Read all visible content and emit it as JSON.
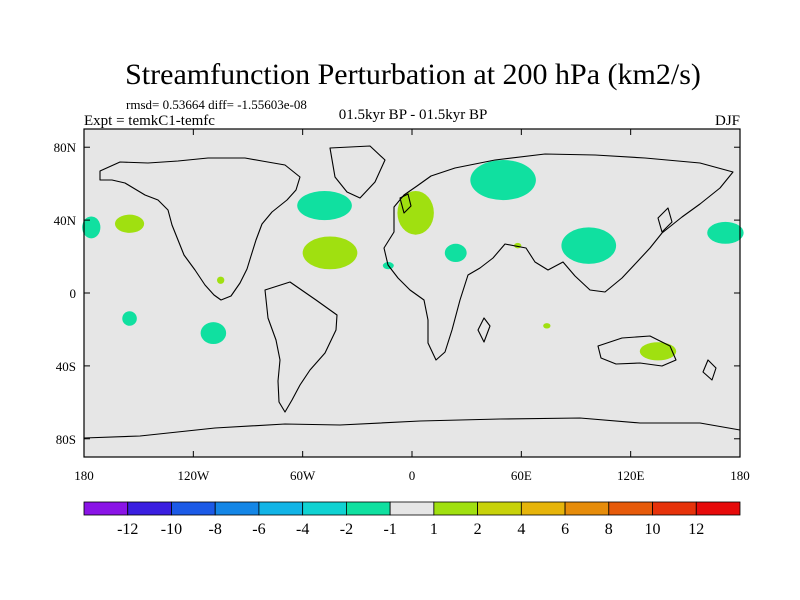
{
  "chart_data": {
    "type": "heatmap",
    "projection": "cylindrical-equidistant",
    "title": "Streamfunction Perturbation at 200 hPa (km2/s)",
    "stats_line": "rmsd= 0.53664 diff= -1.55603e-08",
    "experiment_line": "Expt = temkC1-temfc",
    "period_line": "01.5kyr BP - 01.5kyr BP",
    "season": "DJF",
    "xlim": [
      -180,
      180
    ],
    "ylim": [
      -90,
      90
    ],
    "x_ticks": [
      {
        "value": -180,
        "label": "180"
      },
      {
        "value": -120,
        "label": "120W"
      },
      {
        "value": -60,
        "label": "60W"
      },
      {
        "value": 0,
        "label": "0"
      },
      {
        "value": 60,
        "label": "60E"
      },
      {
        "value": 120,
        "label": "120E"
      },
      {
        "value": 180,
        "label": "180"
      }
    ],
    "y_ticks": [
      {
        "value": 80,
        "label": "80N"
      },
      {
        "value": 40,
        "label": "40N"
      },
      {
        "value": 0,
        "label": "0"
      },
      {
        "value": -40,
        "label": "40S"
      },
      {
        "value": -80,
        "label": "80S"
      }
    ],
    "colorbar": {
      "levels": [
        "-12",
        "-10",
        "-8",
        "-6",
        "-4",
        "-2",
        "-1",
        "1",
        "2",
        "4",
        "6",
        "8",
        "10",
        "12"
      ],
      "colors": [
        "#8a14e6",
        "#3a1ee0",
        "#1c5ae6",
        "#1486e6",
        "#12b4e6",
        "#10d2d2",
        "#10e0a0",
        "#e6e6e6",
        "#a0e010",
        "#c8d20a",
        "#e6b40a",
        "#e68c0a",
        "#e65a0a",
        "#e6320a",
        "#e60a0a"
      ]
    },
    "background_color": "#e6e6e6",
    "regions": [
      {
        "label": "N Pacific near 155W 38N",
        "lon": -155,
        "lat": 38,
        "rx_deg": 8,
        "ry_deg": 5,
        "bin": "1 to 2"
      },
      {
        "label": "Dateline 38N",
        "lon": -176,
        "lat": 36,
        "rx_deg": 5,
        "ry_deg": 6,
        "bin": "-2 to -1"
      },
      {
        "label": "NW Atlantic 45N",
        "lon": -48,
        "lat": 48,
        "rx_deg": 15,
        "ry_deg": 8,
        "bin": "-2 to -1"
      },
      {
        "label": "Subtropical Atlantic 25N",
        "lon": -45,
        "lat": 22,
        "rx_deg": 15,
        "ry_deg": 9,
        "bin": "1 to 2"
      },
      {
        "label": "Caribbean 15N",
        "lon": -13,
        "lat": 15,
        "rx_deg": 3,
        "ry_deg": 2,
        "bin": "-2 to -1"
      },
      {
        "label": "Europe 45N",
        "lon": 2,
        "lat": 44,
        "rx_deg": 10,
        "ry_deg": 12,
        "bin": "1 to 2"
      },
      {
        "label": "Siberia 60N",
        "lon": 50,
        "lat": 62,
        "rx_deg": 18,
        "ry_deg": 11,
        "bin": "-2 to -1"
      },
      {
        "label": "N Africa 22N",
        "lon": 24,
        "lat": 22,
        "rx_deg": 6,
        "ry_deg": 5,
        "bin": "-2 to -1"
      },
      {
        "label": "Persian Gulf 25N",
        "lon": 58,
        "lat": 26,
        "rx_deg": 2,
        "ry_deg": 1.5,
        "bin": "1 to 2"
      },
      {
        "label": "Tibet 25N",
        "lon": 97,
        "lat": 26,
        "rx_deg": 15,
        "ry_deg": 10,
        "bin": "-2 to -1"
      },
      {
        "label": "W Pacific 35N",
        "lon": 172,
        "lat": 33,
        "rx_deg": 10,
        "ry_deg": 6,
        "bin": "-2 to -1"
      },
      {
        "label": "E Pacific 5N",
        "lon": -105,
        "lat": 7,
        "rx_deg": 2,
        "ry_deg": 2,
        "bin": "1 to 2"
      },
      {
        "label": "S Pacific 155W",
        "lon": -155,
        "lat": -14,
        "rx_deg": 4,
        "ry_deg": 4,
        "bin": "-2 to -1"
      },
      {
        "label": "S Pacific 110W",
        "lon": -109,
        "lat": -22,
        "rx_deg": 7,
        "ry_deg": 6,
        "bin": "-2 to -1"
      },
      {
        "label": "Indian Ocean 75E",
        "lon": 74,
        "lat": -18,
        "rx_deg": 2,
        "ry_deg": 1.5,
        "bin": "1 to 2"
      },
      {
        "label": "Australia 30S",
        "lon": 135,
        "lat": -32,
        "rx_deg": 10,
        "ry_deg": 5,
        "bin": "1 to 2"
      }
    ]
  }
}
